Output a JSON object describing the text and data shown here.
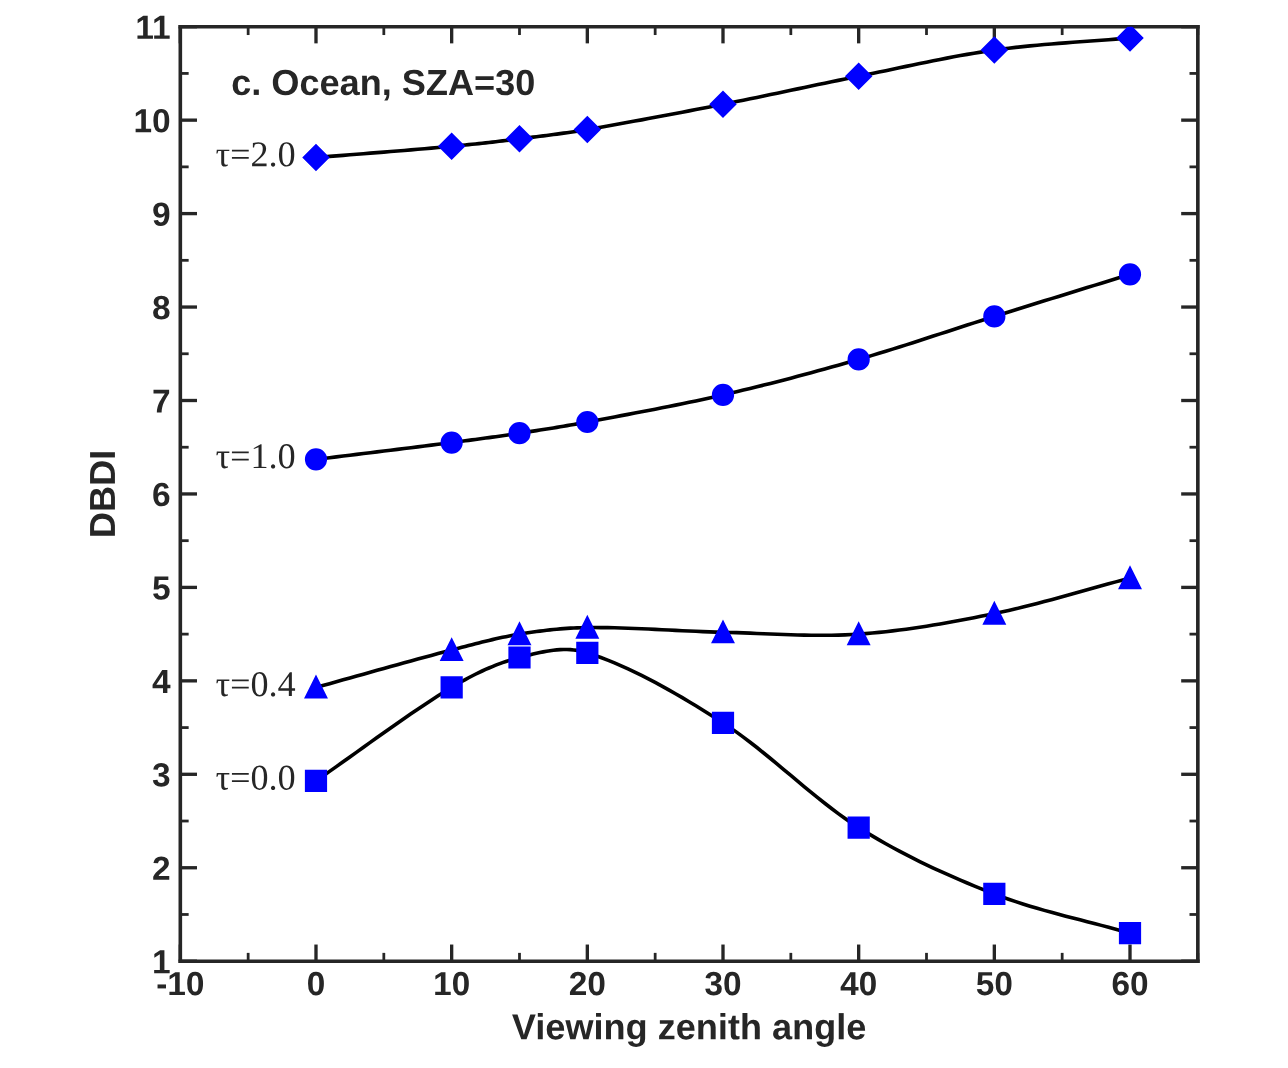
{
  "chart_data": {
    "type": "line",
    "title": "c. Ocean, SZA=30",
    "xlabel": "Viewing zenith angle",
    "ylabel": "DBDI",
    "x": [
      0,
      10,
      15,
      20,
      30,
      40,
      50,
      60
    ],
    "series": [
      {
        "name": "τ=2.0",
        "color": "#0000ff",
        "marker": "diamond",
        "values": [
          9.6,
          9.72,
          9.8,
          9.9,
          10.17,
          10.47,
          10.75,
          10.88
        ]
      },
      {
        "name": "τ=1.0",
        "color": "#0000ff",
        "marker": "circle",
        "values": [
          6.37,
          6.55,
          6.65,
          6.77,
          7.06,
          7.44,
          7.9,
          8.35
        ]
      },
      {
        "name": "τ=0.4",
        "color": "#0000ff",
        "marker": "triangle",
        "values": [
          3.93,
          4.33,
          4.5,
          4.57,
          4.52,
          4.5,
          4.72,
          5.1
        ]
      },
      {
        "name": "τ=0.0",
        "color": "#0000ff",
        "marker": "square",
        "values": [
          2.93,
          3.93,
          4.25,
          4.3,
          3.55,
          2.43,
          1.72,
          1.3
        ]
      }
    ],
    "xlim": [
      -10,
      65
    ],
    "ylim": [
      1,
      11
    ],
    "xticks": [
      -10,
      0,
      10,
      20,
      30,
      40,
      50,
      60
    ],
    "yticks": [
      1,
      2,
      3,
      4,
      5,
      6,
      7,
      8,
      9,
      10,
      11
    ],
    "grid": false,
    "legend": false,
    "line_style": "solid"
  }
}
